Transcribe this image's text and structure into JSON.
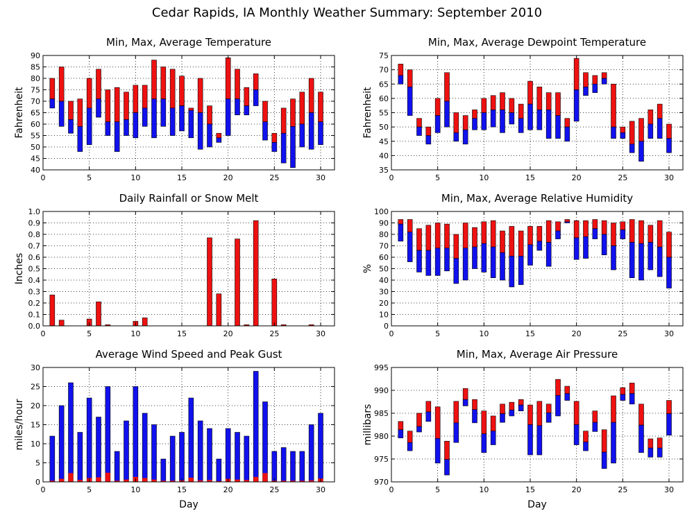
{
  "title": "Cedar Rapids, IA Monthly Weather Summary: September 2010",
  "chart_data": [
    {
      "type": "bar",
      "title": "Min, Max, Average Temperature",
      "xlabel": "",
      "ylabel": "Fahrenheit",
      "ylim": [
        40,
        90
      ],
      "yticks": [
        40,
        45,
        50,
        55,
        60,
        65,
        70,
        75,
        80,
        85,
        90
      ],
      "xlim": [
        0,
        31.5
      ],
      "xticks": [
        0,
        5,
        10,
        15,
        20,
        25,
        30
      ],
      "grid": true,
      "colors": {
        "upper": "#ee1111",
        "lower": "#1111ee"
      },
      "x": [
        1,
        2,
        3,
        4,
        5,
        6,
        7,
        8,
        9,
        10,
        11,
        12,
        13,
        14,
        15,
        16,
        17,
        18,
        19,
        20,
        21,
        22,
        23,
        24,
        25,
        26,
        27,
        28,
        29,
        30
      ],
      "min": [
        67,
        59,
        56,
        48,
        51,
        63,
        55,
        48,
        55,
        54,
        59,
        54,
        59,
        55,
        57,
        54,
        49,
        50,
        52,
        55,
        64,
        64,
        68,
        53,
        48,
        43,
        41,
        50,
        49,
        51
      ],
      "avg": [
        71,
        70,
        62,
        59,
        67,
        71,
        61,
        61,
        62,
        65,
        67,
        71,
        71,
        67,
        68,
        66,
        65,
        60,
        54,
        71,
        71,
        68,
        75,
        61,
        52,
        56,
        59,
        60,
        65,
        61
      ],
      "max": [
        80,
        85,
        70,
        71,
        80,
        84,
        75,
        76,
        74,
        77,
        77,
        88,
        85,
        84,
        81,
        67,
        80,
        68,
        56,
        89,
        84,
        76,
        82,
        70,
        56,
        67,
        71,
        74,
        80,
        74
      ]
    },
    {
      "type": "bar",
      "title": "Min, Max, Average Dewpoint Temperature",
      "xlabel": "",
      "ylabel": "Fahrenheit",
      "ylim": [
        35,
        75
      ],
      "yticks": [
        35,
        40,
        45,
        50,
        55,
        60,
        65,
        70,
        75
      ],
      "xlim": [
        0,
        31.5
      ],
      "xticks": [
        0,
        5,
        10,
        15,
        20,
        25,
        30
      ],
      "grid": true,
      "colors": {
        "upper": "#ee1111",
        "lower": "#1111ee"
      },
      "x": [
        1,
        2,
        3,
        4,
        5,
        6,
        7,
        8,
        9,
        10,
        11,
        12,
        13,
        14,
        15,
        16,
        17,
        18,
        19,
        20,
        21,
        22,
        23,
        24,
        25,
        26,
        27,
        28,
        29,
        30
      ],
      "min": [
        65,
        54,
        47,
        44,
        48,
        50,
        45,
        44,
        49,
        49,
        50,
        48,
        51,
        48,
        49,
        49,
        46,
        46,
        45,
        52,
        61,
        62,
        65,
        46,
        46,
        41,
        38,
        46,
        46,
        41
      ],
      "avg": [
        68,
        64,
        50,
        47,
        54,
        59,
        48,
        49,
        53,
        55,
        56,
        56,
        55,
        53,
        58,
        56,
        56,
        54,
        50,
        63,
        64,
        65,
        67,
        50,
        48,
        44,
        45,
        51,
        53,
        46
      ],
      "max": [
        72,
        70,
        53,
        50,
        60,
        69,
        55,
        54,
        56,
        60,
        61,
        62,
        60,
        58,
        66,
        64,
        62,
        62,
        53,
        74,
        69,
        68,
        69,
        65,
        50,
        52,
        53,
        56,
        58,
        51
      ]
    },
    {
      "type": "bar",
      "title": "Daily Rainfall or Snow Melt",
      "xlabel": "",
      "ylabel": "Inches",
      "ylim": [
        0,
        1.0
      ],
      "yticks": [
        0.0,
        0.1,
        0.2,
        0.3,
        0.4,
        0.5,
        0.6,
        0.7,
        0.8,
        0.9,
        1.0
      ],
      "xlim": [
        0,
        31.5
      ],
      "xticks": [
        0,
        5,
        10,
        15,
        20,
        25,
        30
      ],
      "grid": true,
      "colors": {
        "bar": "#ee1111"
      },
      "x": [
        1,
        2,
        3,
        4,
        5,
        6,
        7,
        8,
        9,
        10,
        11,
        12,
        13,
        14,
        15,
        16,
        17,
        18,
        19,
        20,
        21,
        22,
        23,
        24,
        25,
        26,
        27,
        28,
        29,
        30
      ],
      "values": [
        0.27,
        0.05,
        0.0,
        0.0,
        0.06,
        0.21,
        0.01,
        0.0,
        0.0,
        0.04,
        0.07,
        0.0,
        0.0,
        0.0,
        0.0,
        0.0,
        0.0,
        0.77,
        0.28,
        0.0,
        0.76,
        0.01,
        0.92,
        0.0,
        0.41,
        0.01,
        0.0,
        0.0,
        0.01,
        0.0
      ]
    },
    {
      "type": "bar",
      "title": "Min, Max, Average Relative Humidity",
      "xlabel": "",
      "ylabel": "%",
      "ylim": [
        0,
        100
      ],
      "yticks": [
        0,
        10,
        20,
        30,
        40,
        50,
        60,
        70,
        80,
        90,
        100
      ],
      "xlim": [
        0,
        31.5
      ],
      "xticks": [
        0,
        5,
        10,
        15,
        20,
        25,
        30
      ],
      "grid": true,
      "colors": {
        "upper": "#ee1111",
        "lower": "#1111ee"
      },
      "x": [
        1,
        2,
        3,
        4,
        5,
        6,
        7,
        8,
        9,
        10,
        11,
        12,
        13,
        14,
        15,
        16,
        17,
        18,
        19,
        20,
        21,
        22,
        23,
        24,
        25,
        26,
        27,
        28,
        29,
        30
      ],
      "min": [
        74,
        56,
        47,
        44,
        44,
        48,
        37,
        40,
        50,
        47,
        42,
        40,
        34,
        36,
        53,
        66,
        52,
        76,
        90,
        58,
        59,
        76,
        62,
        49,
        76,
        42,
        40,
        49,
        43,
        33
      ],
      "avg": [
        89,
        82,
        66,
        66,
        68,
        68,
        59,
        68,
        69,
        72,
        69,
        64,
        61,
        61,
        71,
        74,
        73,
        83,
        91,
        77,
        78,
        85,
        80,
        70,
        84,
        73,
        72,
        73,
        69,
        60
      ],
      "max": [
        93,
        93,
        85,
        88,
        90,
        89,
        80,
        90,
        86,
        91,
        92,
        83,
        87,
        83,
        87,
        87,
        92,
        91,
        93,
        92,
        92,
        93,
        92,
        90,
        91,
        93,
        92,
        88,
        92,
        82
      ]
    },
    {
      "type": "bar",
      "title": "Average Wind Speed and Peak Gust",
      "xlabel": "Day",
      "ylabel": "miles/hour",
      "ylim": [
        0,
        30
      ],
      "yticks": [
        0,
        5,
        10,
        15,
        20,
        25,
        30
      ],
      "xlim": [
        0,
        31.5
      ],
      "xticks": [
        0,
        5,
        10,
        15,
        20,
        25,
        30
      ],
      "grid": true,
      "colors": {
        "peak_gust": "#1111ee",
        "average": "#ee1111"
      },
      "x": [
        1,
        2,
        3,
        4,
        5,
        6,
        7,
        8,
        9,
        10,
        11,
        12,
        13,
        14,
        15,
        16,
        17,
        18,
        19,
        20,
        21,
        22,
        23,
        24,
        25,
        26,
        27,
        28,
        29,
        30
      ],
      "peak_gust": [
        12,
        20,
        26,
        13,
        22,
        17,
        25,
        8,
        16,
        25,
        18,
        15,
        6,
        12,
        13,
        22,
        16,
        14,
        6,
        14,
        13,
        12,
        29,
        21,
        8,
        9,
        8,
        8,
        15,
        18
      ],
      "average": [
        0.3,
        0.8,
        2.3,
        0.5,
        1.0,
        1.2,
        2.4,
        0.3,
        0.6,
        1.3,
        1.0,
        0.6,
        0.3,
        0.3,
        0.4,
        1.1,
        0.4,
        0.5,
        0.2,
        0.8,
        0.6,
        0.5,
        1.3,
        2.3,
        0.3,
        0.3,
        0.3,
        0.3,
        0.4,
        0.9
      ]
    },
    {
      "type": "bar",
      "title": "Min, Max, Average Air Pressure",
      "xlabel": "Day",
      "ylabel": "millibars",
      "ylim": [
        970,
        995
      ],
      "yticks": [
        970,
        975,
        980,
        985,
        990,
        995
      ],
      "xlim": [
        0,
        31.5
      ],
      "xticks": [
        0,
        5,
        10,
        15,
        20,
        25,
        30
      ],
      "grid": true,
      "colors": {
        "upper": "#ee1111",
        "lower": "#1111ee"
      },
      "x": [
        1,
        2,
        3,
        4,
        5,
        6,
        7,
        8,
        9,
        10,
        11,
        12,
        13,
        14,
        15,
        16,
        17,
        18,
        19,
        20,
        21,
        22,
        23,
        24,
        25,
        26,
        27,
        28,
        29,
        30
      ],
      "min": [
        979.6,
        976.8,
        980.9,
        983.2,
        974.1,
        971.5,
        978.6,
        986.6,
        982.9,
        976.4,
        978.1,
        983.0,
        984.4,
        985.5,
        975.9,
        975.9,
        983.0,
        984.4,
        987.8,
        978.1,
        976.8,
        981.0,
        972.9,
        974.1,
        987.8,
        987.0,
        976.4,
        975.4,
        975.4,
        980.2
      ],
      "avg": [
        981.4,
        978.6,
        982.1,
        985.3,
        979.5,
        974.9,
        982.9,
        988.0,
        985.8,
        980.5,
        981.1,
        984.9,
        985.7,
        986.8,
        982.5,
        982.3,
        985.1,
        988.9,
        989.3,
        982.5,
        978.7,
        983.0,
        976.5,
        983.0,
        989.1,
        989.3,
        982.4,
        977.4,
        977.4,
        984.9
      ],
      "max": [
        983.2,
        981.1,
        985.0,
        987.6,
        986.4,
        978.9,
        987.6,
        990.4,
        988.0,
        985.5,
        984.4,
        987.0,
        987.4,
        988.0,
        986.8,
        987.6,
        987.0,
        992.4,
        990.9,
        987.6,
        981.1,
        985.5,
        981.4,
        988.8,
        990.6,
        991.6,
        987.0,
        979.4,
        979.6,
        987.8
      ]
    }
  ]
}
